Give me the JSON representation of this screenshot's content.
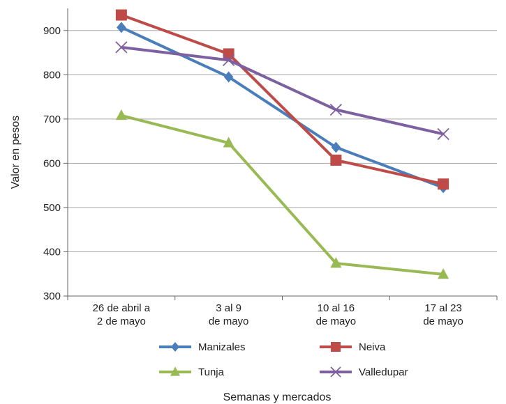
{
  "chart_data": {
    "type": "line",
    "categories": [
      [
        "26 de abril a",
        "2 de mayo"
      ],
      [
        "3 al 9",
        "de mayo"
      ],
      [
        "10 al 16",
        "de mayo"
      ],
      [
        "17 al 23",
        "de mayo"
      ]
    ],
    "series": [
      {
        "name": "Manizales",
        "color": "#4a7ebb",
        "marker": "diamond",
        "values": [
          907,
          795,
          636,
          545
        ]
      },
      {
        "name": "Neiva",
        "color": "#be4b48",
        "marker": "square",
        "values": [
          935,
          847,
          607,
          553
        ]
      },
      {
        "name": "Tunja",
        "color": "#98b954",
        "marker": "triangle",
        "values": [
          708,
          646,
          374,
          349
        ]
      },
      {
        "name": "Valledupar",
        "color": "#7d60a0",
        "marker": "cross",
        "values": [
          862,
          833,
          721,
          666
        ]
      }
    ],
    "xlabel": "Semanas y mercados",
    "ylabel": "Valor en pesos",
    "ylim": [
      300,
      950
    ],
    "yticks": [
      300,
      400,
      500,
      600,
      700,
      800,
      900
    ],
    "grid": true,
    "legend_position": "bottom"
  }
}
